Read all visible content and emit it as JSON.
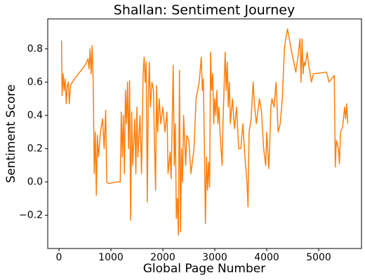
{
  "chart_data": {
    "type": "line",
    "title": "Shallan: Sentiment Journey",
    "x_label": "Global Page Number",
    "y_label": "Sentiment Score",
    "xlim": [
      -216,
      5824
    ],
    "xticks": [
      0,
      1000,
      2000,
      3000,
      4000,
      5000
    ],
    "ylim": [
      -0.4,
      0.98
    ],
    "yticks": [
      {
        "value": -0.2,
        "label": "−0.2"
      },
      {
        "value": 0,
        "label": "0.0"
      },
      0.2,
      0.4,
      0.6,
      0.8
    ],
    "grid": false,
    "series": [
      {
        "name": "Shallan",
        "color": "#ff7f0e",
        "x": [
          50,
          60,
          80,
          100,
          120,
          140,
          160,
          180,
          200,
          220,
          300,
          400,
          500,
          560,
          580,
          600,
          620,
          640,
          660,
          680,
          700,
          720,
          740,
          760,
          800,
          840,
          870,
          900,
          920,
          960,
          1100,
          1180,
          1200,
          1220,
          1240,
          1260,
          1280,
          1300,
          1320,
          1340,
          1360,
          1380,
          1400,
          1420,
          1460,
          1480,
          1500,
          1520,
          1560,
          1590,
          1620,
          1640,
          1660,
          1680,
          1700,
          1720,
          1740,
          1760,
          1790,
          1820,
          1840,
          1860,
          1880,
          1900,
          1930,
          1960,
          2000,
          2040,
          2080,
          2100,
          2140,
          2160,
          2200,
          2220,
          2240,
          2260,
          2280,
          2300,
          2320,
          2340,
          2360,
          2380,
          2400,
          2440,
          2460,
          2500,
          2540,
          2600,
          2640,
          2700,
          2740,
          2760,
          2780,
          2800,
          2820,
          2840,
          2860,
          2880,
          2900,
          2920,
          2940,
          2960,
          2980,
          3000,
          3020,
          3040,
          3060,
          3080,
          3100,
          3140,
          3160,
          3200,
          3220,
          3240,
          3260,
          3280,
          3300,
          3340,
          3380,
          3420,
          3460,
          3500,
          3540,
          3580,
          3620,
          3640,
          3660,
          3700,
          3720,
          3740,
          3760,
          3800,
          3840,
          3860,
          3900,
          3940,
          3980,
          4000,
          4040,
          4060,
          4080,
          4100,
          4140,
          4180,
          4220,
          4260,
          4300,
          4340,
          4360,
          4400,
          4440,
          4480,
          4520,
          4560,
          4600,
          4640,
          4660,
          4680,
          4700,
          4720,
          4740,
          4780,
          4800,
          4860,
          4900,
          5150,
          5200,
          5300,
          5320,
          5340,
          5380,
          5400,
          5420,
          5460,
          5500,
          5520,
          5540,
          5560
        ],
        "values": [
          0.85,
          0.52,
          0.65,
          0.55,
          0.62,
          0.47,
          0.58,
          0.6,
          0.47,
          0.58,
          0.62,
          0.66,
          0.7,
          0.74,
          0.68,
          0.8,
          0.65,
          0.82,
          0.6,
          0.05,
          0.3,
          -0.08,
          0.28,
          0.15,
          0.3,
          0.38,
          0.2,
          0.43,
          0.0,
          -0.01,
          0.0,
          0.0,
          0.42,
          0.15,
          0.4,
          0.05,
          0.55,
          0.35,
          0.6,
          0.2,
          0.61,
          -0.23,
          0.42,
          0.1,
          0.38,
          0.05,
          0.45,
          0.15,
          0.4,
          0.05,
          0.65,
          0.75,
          0.6,
          0.72,
          -0.12,
          0.5,
          0.72,
          0.45,
          0.6,
          0.55,
          0.22,
          -0.05,
          0.58,
          0.3,
          0.5,
          0.35,
          0.45,
          0.3,
          0.42,
          0.05,
          0.18,
          0.02,
          0.7,
          0.1,
          0.35,
          -0.22,
          -0.1,
          -0.32,
          0.67,
          -0.3,
          0.2,
          0.0,
          0.4,
          0.1,
          0.28,
          0.25,
          0.05,
          0.2,
          0.5,
          0.6,
          0.75,
          0.55,
          0.62,
          0.2,
          -0.25,
          0.15,
          -0.05,
          0.12,
          -0.03,
          0.78,
          0.55,
          0.65,
          0.35,
          0.5,
          0.4,
          0.55,
          0.35,
          0.45,
          0.3,
          0.1,
          0.38,
          0.78,
          0.55,
          0.72,
          0.45,
          0.6,
          0.35,
          0.5,
          0.32,
          0.45,
          0.2,
          0.2,
          0.35,
          0.15,
          0.0,
          -0.15,
          0.3,
          0.38,
          0.5,
          0.6,
          0.48,
          0.35,
          0.45,
          0.5,
          0.42,
          0.2,
          0.1,
          0.3,
          0.08,
          0.25,
          0.45,
          0.5,
          0.45,
          0.6,
          0.3,
          0.35,
          0.5,
          0.8,
          0.85,
          0.92,
          0.85,
          0.78,
          0.72,
          0.66,
          0.75,
          0.86,
          0.6,
          0.86,
          0.65,
          0.72,
          0.7,
          0.78,
          0.72,
          0.6,
          0.65,
          0.66,
          0.6,
          0.64,
          0.09,
          0.25,
          0.2,
          0.11,
          0.3,
          0.33,
          0.45,
          0.38,
          0.47,
          0.35
        ]
      }
    ]
  }
}
